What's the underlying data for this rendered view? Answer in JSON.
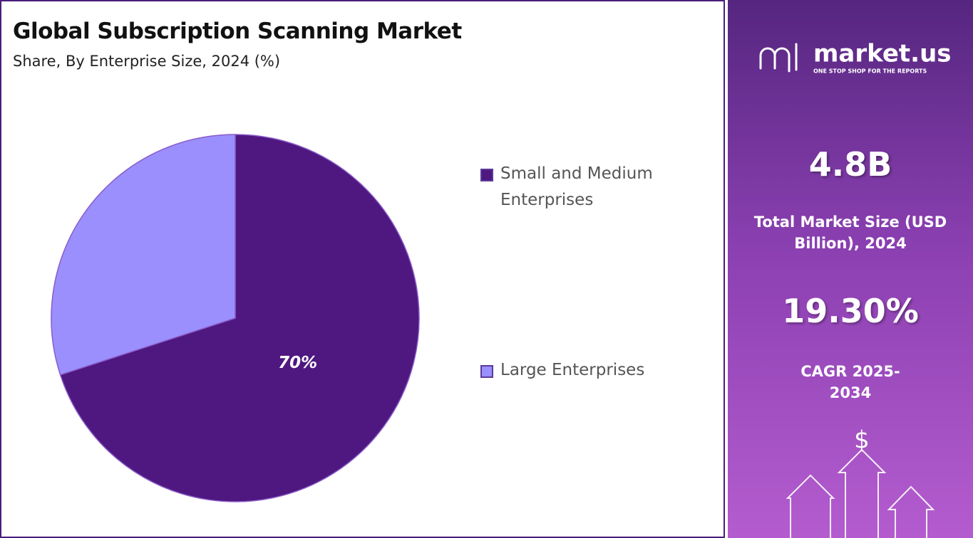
{
  "chart_data": {
    "type": "pie",
    "title": "Global Subscription Scanning Market",
    "subtitle": "Share, By Enterprise Size, 2024 (%)",
    "categories": [
      "Small and Medium Enterprises",
      "Large Enterprises"
    ],
    "values": [
      70,
      30
    ],
    "value_labels": [
      "70%",
      null
    ],
    "colors": [
      "#4f1780",
      "#9a8ffd"
    ]
  },
  "panel": {
    "brand": "market.us",
    "tagline": "ONE STOP SHOP FOR THE REPORTS",
    "market_size": "4.8B",
    "market_size_label": "Total Market Size (USD Billion), 2024",
    "cagr": "19.30%",
    "cagr_label": "CAGR 2025-2034"
  }
}
